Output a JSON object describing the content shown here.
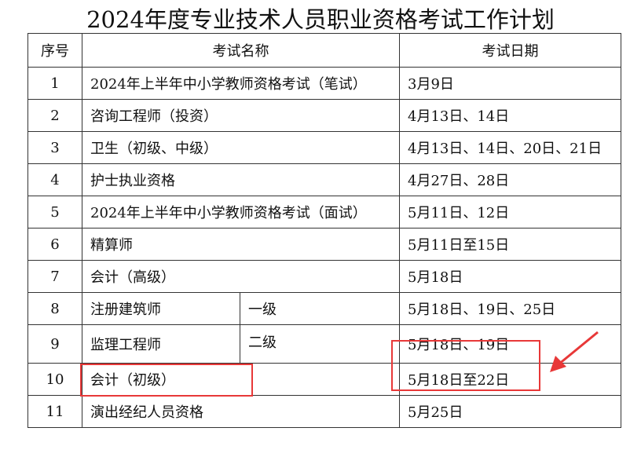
{
  "title": "2024年度专业技术人员职业资格考试工作计划",
  "headers": {
    "no": "序号",
    "name": "考试名称",
    "date": "考试日期"
  },
  "rows": [
    {
      "no": "1",
      "name": "2024年上半年中小学教师资格考试（笔试）",
      "date": "3月9日"
    },
    {
      "no": "2",
      "name": "咨询工程师（投资）",
      "date": "4月13日、14日"
    },
    {
      "no": "3",
      "name": "卫生（初级、中级）",
      "date": "4月13日、14日、20日、21日"
    },
    {
      "no": "4",
      "name": "护士执业资格",
      "date": "4月27日、28日"
    },
    {
      "no": "5",
      "name": "2024年上半年中小学教师资格考试（面试）",
      "date": "5月11日、12日"
    },
    {
      "no": "6",
      "name": "精算师",
      "date": "5月11日至15日"
    },
    {
      "no": "7",
      "name": "会计（高级）",
      "date": "5月18日"
    },
    {
      "no": "8",
      "name": "注册建筑师",
      "sub1": "一级",
      "date1": "5月18日、19日、25日",
      "sub2": "二级",
      "date2": "5月18日、19日"
    },
    {
      "no": "9",
      "name": "监理工程师"
    },
    {
      "no": "10",
      "name": "会计（初级）",
      "date": "5月18日至22日"
    },
    {
      "no": "11",
      "name": "演出经纪人员资格",
      "date": "5月25日"
    }
  ],
  "highlight_color": "#e83838"
}
